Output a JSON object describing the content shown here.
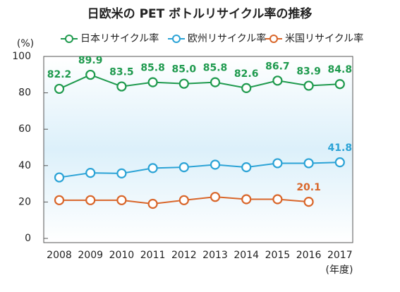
{
  "chart_data": {
    "type": "line",
    "title": "日欧米の PET ボトルリサイクル率の推移",
    "y_label": "(%)",
    "x_label": "(年度)",
    "categories": [
      "2008",
      "2009",
      "2010",
      "2011",
      "2012",
      "2013",
      "2014",
      "2015",
      "2016",
      "2017"
    ],
    "series": [
      {
        "name": "日本リサイクル率",
        "color": "#1f9a4e",
        "values": [
          82.2,
          89.9,
          83.5,
          85.8,
          85.0,
          85.8,
          82.6,
          86.7,
          83.9,
          84.8
        ],
        "value_labels": [
          "82.2",
          "89.9",
          "83.5",
          "85.8",
          "85.0",
          "85.8",
          "82.6",
          "86.7",
          "83.9",
          "84.8"
        ]
      },
      {
        "name": "欧州リサイクル率",
        "color": "#2ba3d6",
        "values": [
          33.5,
          36.0,
          35.7,
          38.6,
          39.1,
          40.5,
          39.1,
          41.3,
          41.3,
          41.8
        ],
        "value_labels": [
          null,
          null,
          null,
          null,
          null,
          null,
          null,
          null,
          null,
          "41.8"
        ]
      },
      {
        "name": "米国リサイクル率",
        "color": "#d9662a",
        "values": [
          21.0,
          21.0,
          21.0,
          19.0,
          21.0,
          22.8,
          21.5,
          21.5,
          20.1,
          null
        ],
        "value_labels": [
          null,
          null,
          null,
          null,
          null,
          null,
          null,
          null,
          "20.1",
          null
        ]
      }
    ],
    "ylim": [
      0,
      100
    ],
    "yticks": [
      0,
      20,
      40,
      60,
      80,
      100
    ],
    "grid": false,
    "legend": "top"
  }
}
